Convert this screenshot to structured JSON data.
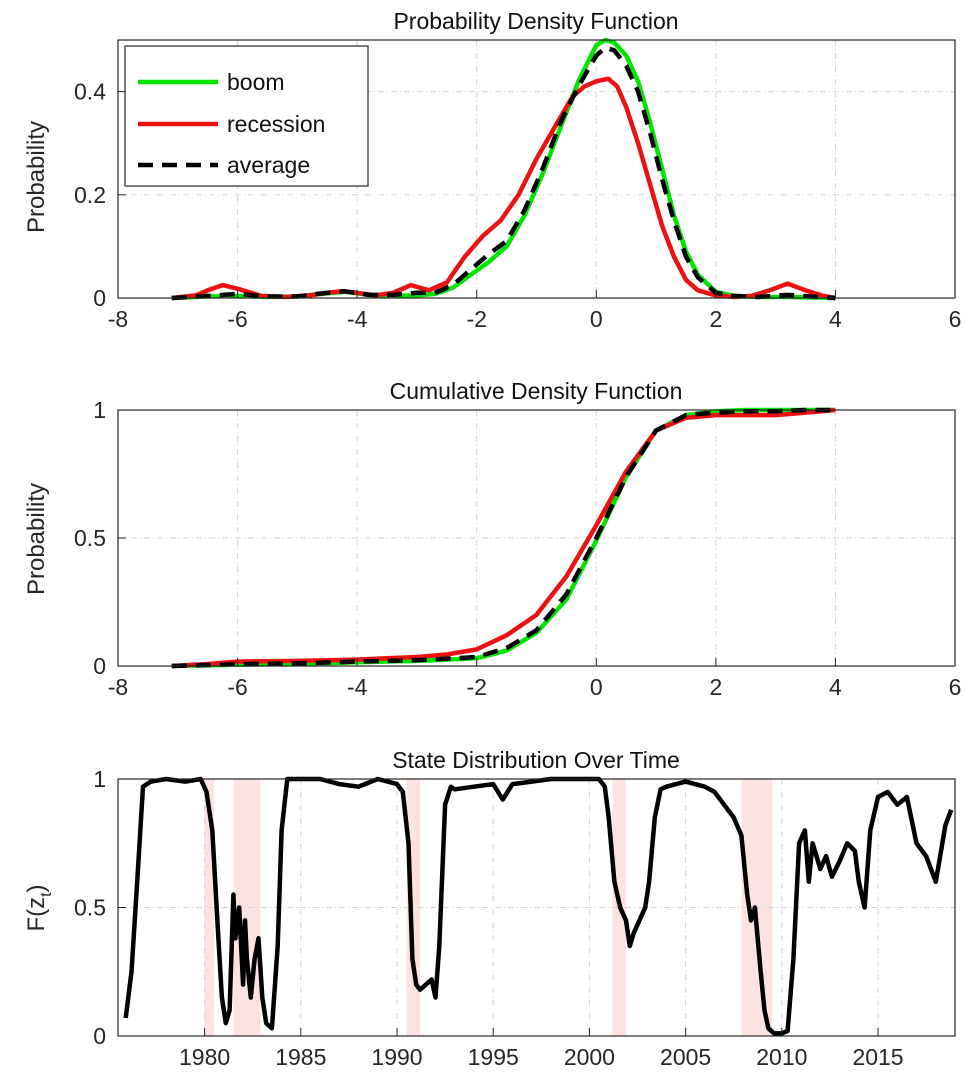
{
  "chart_data": [
    {
      "type": "line",
      "title": "Probability Density Function",
      "ylabel": "Probability",
      "xlim": [
        -8,
        6
      ],
      "ylim": [
        0,
        0.5
      ],
      "xticks": [
        "-8",
        "-6",
        "-4",
        "-2",
        "0",
        "2",
        "4",
        "6"
      ],
      "yticks": [
        "0",
        "0.2",
        "0.4"
      ],
      "grid": true,
      "legend_position": "top-left",
      "legend": [
        "boom",
        "recession",
        "average"
      ],
      "series": [
        {
          "name": "boom",
          "color": "#00e600",
          "style": "solid",
          "x": [
            -7.1,
            -6.5,
            -6.0,
            -5.5,
            -5.0,
            -4.6,
            -4.2,
            -3.8,
            -3.4,
            -3.0,
            -2.7,
            -2.4,
            -2.1,
            -1.8,
            -1.5,
            -1.2,
            -0.9,
            -0.6,
            -0.3,
            0.0,
            0.15,
            0.3,
            0.5,
            0.7,
            0.9,
            1.1,
            1.3,
            1.5,
            1.7,
            2.0,
            2.3,
            2.7,
            3.2,
            3.6,
            4.0
          ],
          "y": [
            0,
            0.003,
            0.004,
            0.002,
            0.003,
            0.008,
            0.012,
            0.006,
            0.004,
            0.005,
            0.008,
            0.02,
            0.045,
            0.07,
            0.1,
            0.16,
            0.24,
            0.33,
            0.42,
            0.49,
            0.5,
            0.495,
            0.47,
            0.42,
            0.34,
            0.25,
            0.16,
            0.09,
            0.045,
            0.012,
            0.004,
            0.002,
            0.002,
            0.001,
            0
          ]
        },
        {
          "name": "recession",
          "color": "#ee1111",
          "style": "solid",
          "x": [
            -7.1,
            -6.7,
            -6.5,
            -6.25,
            -6.0,
            -5.6,
            -5.2,
            -4.8,
            -4.5,
            -4.25,
            -4.0,
            -3.7,
            -3.4,
            -3.1,
            -2.8,
            -2.5,
            -2.2,
            -1.9,
            -1.6,
            -1.3,
            -1.0,
            -0.7,
            -0.4,
            -0.2,
            0.0,
            0.2,
            0.35,
            0.5,
            0.7,
            0.9,
            1.1,
            1.3,
            1.5,
            1.7,
            2.0,
            2.3,
            2.6,
            2.9,
            3.2,
            3.5,
            3.8,
            4.0
          ],
          "y": [
            0,
            0.005,
            0.015,
            0.025,
            0.018,
            0.004,
            0.002,
            0.005,
            0.01,
            0.013,
            0.01,
            0.005,
            0.01,
            0.025,
            0.015,
            0.03,
            0.08,
            0.12,
            0.15,
            0.2,
            0.27,
            0.33,
            0.39,
            0.41,
            0.42,
            0.425,
            0.41,
            0.37,
            0.3,
            0.22,
            0.14,
            0.08,
            0.035,
            0.015,
            0.005,
            0.002,
            0.004,
            0.015,
            0.028,
            0.015,
            0.004,
            0
          ]
        },
        {
          "name": "average",
          "color": "#000000",
          "style": "dashed",
          "x": [
            -7.1,
            -6.5,
            -6.0,
            -5.5,
            -5.0,
            -4.6,
            -4.2,
            -3.8,
            -3.4,
            -3.0,
            -2.7,
            -2.4,
            -2.1,
            -1.8,
            -1.5,
            -1.2,
            -0.9,
            -0.6,
            -0.3,
            0.0,
            0.15,
            0.3,
            0.5,
            0.7,
            0.9,
            1.1,
            1.3,
            1.5,
            1.7,
            2.0,
            2.3,
            2.7,
            3.2,
            3.6,
            4.0
          ],
          "y": [
            0,
            0.004,
            0.008,
            0.003,
            0.003,
            0.009,
            0.013,
            0.006,
            0.006,
            0.01,
            0.01,
            0.025,
            0.055,
            0.085,
            0.11,
            0.17,
            0.25,
            0.34,
            0.41,
            0.47,
            0.485,
            0.48,
            0.45,
            0.4,
            0.32,
            0.23,
            0.15,
            0.08,
            0.04,
            0.01,
            0.004,
            0.002,
            0.006,
            0.003,
            0
          ]
        }
      ]
    },
    {
      "type": "line",
      "title": "Cumulative Density Function",
      "ylabel": "Probability",
      "xlim": [
        -8,
        6
      ],
      "ylim": [
        0,
        1
      ],
      "xticks": [
        "-8",
        "-6",
        "-4",
        "-2",
        "0",
        "2",
        "4",
        "6"
      ],
      "yticks": [
        "0",
        "0.5",
        "1"
      ],
      "grid": true,
      "series": [
        {
          "name": "boom",
          "color": "#00e600",
          "style": "solid",
          "x": [
            -7.1,
            -6.0,
            -5.0,
            -4.0,
            -3.0,
            -2.5,
            -2.0,
            -1.5,
            -1.0,
            -0.5,
            0.0,
            0.5,
            1.0,
            1.5,
            2.0,
            2.5,
            3.0,
            3.5,
            4.0
          ],
          "y": [
            0,
            0.005,
            0.008,
            0.015,
            0.02,
            0.025,
            0.03,
            0.06,
            0.13,
            0.26,
            0.49,
            0.74,
            0.92,
            0.98,
            0.995,
            1.0,
            1.0,
            1.0,
            1.0
          ]
        },
        {
          "name": "recession",
          "color": "#ee1111",
          "style": "solid",
          "x": [
            -7.1,
            -6.5,
            -6.0,
            -5.0,
            -4.0,
            -3.0,
            -2.5,
            -2.0,
            -1.5,
            -1.0,
            -0.5,
            0.0,
            0.5,
            1.0,
            1.5,
            2.0,
            2.5,
            3.0,
            3.5,
            4.0
          ],
          "y": [
            0,
            0.008,
            0.017,
            0.02,
            0.025,
            0.035,
            0.045,
            0.065,
            0.12,
            0.2,
            0.35,
            0.55,
            0.76,
            0.92,
            0.97,
            0.98,
            0.98,
            0.98,
            0.99,
            1.0
          ]
        },
        {
          "name": "average",
          "color": "#000000",
          "style": "dashed",
          "x": [
            -7.1,
            -6.0,
            -5.0,
            -4.0,
            -3.0,
            -2.5,
            -2.0,
            -1.5,
            -1.0,
            -0.5,
            0.0,
            0.5,
            1.0,
            1.5,
            2.0,
            2.5,
            3.0,
            3.5,
            4.0
          ],
          "y": [
            0,
            0.007,
            0.01,
            0.017,
            0.023,
            0.028,
            0.035,
            0.07,
            0.14,
            0.28,
            0.5,
            0.74,
            0.92,
            0.98,
            0.99,
            0.995,
            0.995,
            1.0,
            1.0
          ]
        }
      ]
    },
    {
      "type": "line",
      "title": "State Distribution Over Time",
      "ylabel": "F(z",
      "ylabel_sub": "t",
      "ylabel_suffix": ")",
      "xlim": [
        1975.5,
        2019
      ],
      "ylim": [
        0,
        1
      ],
      "xticks": [
        "1980",
        "1985",
        "1990",
        "1995",
        "2000",
        "2005",
        "2010",
        "2015"
      ],
      "yticks": [
        "0",
        "0.5",
        "1"
      ],
      "grid": true,
      "shaded_regions": [
        [
          1980.0,
          1980.5
        ],
        [
          1981.5,
          1982.9
        ],
        [
          1990.5,
          1991.2
        ],
        [
          2001.2,
          2001.9
        ],
        [
          2007.9,
          2009.5
        ]
      ],
      "shade_color": "#fde2e2",
      "series": [
        {
          "name": "",
          "color": "#000000",
          "style": "solid",
          "x": [
            1975.9,
            1976.2,
            1976.5,
            1976.8,
            1977.2,
            1978,
            1979,
            1979.8,
            1980.1,
            1980.4,
            1980.7,
            1980.9,
            1981.1,
            1981.3,
            1981.5,
            1981.6,
            1981.8,
            1982.0,
            1982.1,
            1982.2,
            1982.4,
            1982.6,
            1982.8,
            1983.0,
            1983.2,
            1983.5,
            1983.8,
            1984.0,
            1984.3,
            1985,
            1986,
            1987,
            1988,
            1989,
            1990.0,
            1990.3,
            1990.6,
            1990.8,
            1991.0,
            1991.2,
            1991.5,
            1991.8,
            1992.0,
            1992.2,
            1992.5,
            1992.8,
            1993,
            1994,
            1995,
            1995.5,
            1996,
            1997,
            1998,
            1999,
            2000,
            2000.5,
            2000.8,
            2001.0,
            2001.3,
            2001.6,
            2001.9,
            2002.1,
            2002.3,
            2002.6,
            2002.9,
            2003.1,
            2003.4,
            2003.7,
            2004,
            2005,
            2006,
            2006.5,
            2007,
            2007.5,
            2007.9,
            2008.2,
            2008.4,
            2008.6,
            2008.9,
            2009.1,
            2009.3,
            2009.6,
            2010,
            2010.3,
            2010.6,
            2010.9,
            2011.2,
            2011.4,
            2011.6,
            2011.8,
            2012.0,
            2012.3,
            2012.6,
            2013.0,
            2013.4,
            2013.8,
            2014.0,
            2014.3,
            2014.6,
            2015.0,
            2015.5,
            2016.0,
            2016.5,
            2017.0,
            2017.5,
            2018.0,
            2018.5,
            2018.8
          ],
          "y": [
            0.07,
            0.25,
            0.6,
            0.97,
            0.99,
            1.0,
            0.99,
            1.0,
            0.95,
            0.8,
            0.4,
            0.15,
            0.05,
            0.1,
            0.55,
            0.38,
            0.5,
            0.2,
            0.45,
            0.3,
            0.15,
            0.3,
            0.38,
            0.15,
            0.05,
            0.03,
            0.35,
            0.8,
            1.0,
            1.0,
            1.0,
            0.98,
            0.97,
            1.0,
            0.98,
            0.95,
            0.75,
            0.3,
            0.2,
            0.18,
            0.2,
            0.22,
            0.15,
            0.35,
            0.9,
            0.97,
            0.96,
            0.97,
            0.98,
            0.92,
            0.98,
            0.99,
            1.0,
            1.0,
            1.0,
            1.0,
            0.97,
            0.85,
            0.6,
            0.5,
            0.45,
            0.35,
            0.4,
            0.45,
            0.5,
            0.6,
            0.85,
            0.96,
            0.97,
            0.99,
            0.97,
            0.95,
            0.9,
            0.85,
            0.78,
            0.55,
            0.45,
            0.5,
            0.25,
            0.1,
            0.03,
            0.01,
            0.01,
            0.02,
            0.3,
            0.75,
            0.8,
            0.6,
            0.75,
            0.7,
            0.65,
            0.7,
            0.62,
            0.68,
            0.75,
            0.72,
            0.6,
            0.5,
            0.8,
            0.93,
            0.95,
            0.9,
            0.93,
            0.75,
            0.7,
            0.6,
            0.82,
            0.88
          ]
        }
      ]
    }
  ]
}
